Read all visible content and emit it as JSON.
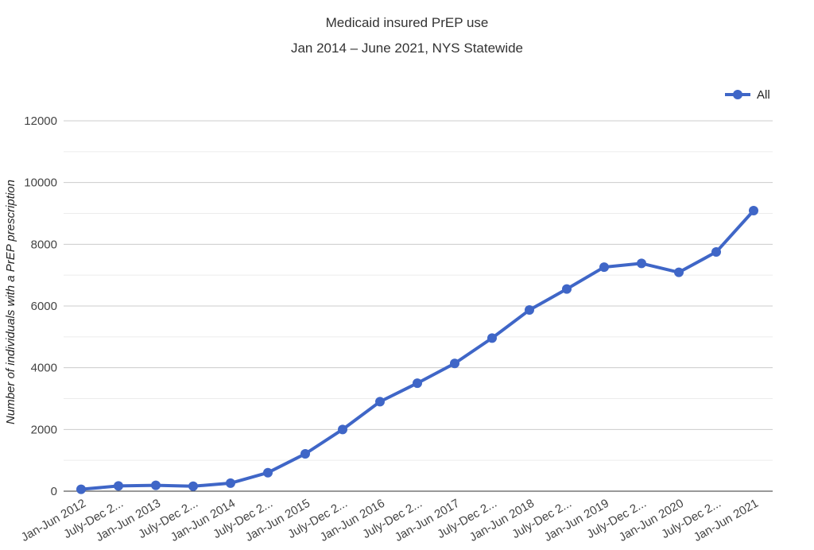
{
  "chart_data": {
    "type": "line",
    "title": "Medicaid insured PrEP use",
    "subtitle": "Jan 2014 – June 2021, NYS Statewide",
    "xlabel": "",
    "ylabel": "Number of individuals with a PrEP prescription",
    "ylim": [
      0,
      12000
    ],
    "yticks": [
      "0",
      "2000",
      "4000",
      "6000",
      "8000",
      "10000",
      "12000"
    ],
    "grid": true,
    "legend_position": "top-right",
    "categories": [
      "Jan-Jun 2012",
      "July-Dec 2...",
      "Jan-Jun 2013",
      "July-Dec 2...",
      "Jan-Jun 2014",
      "July-Dec 2...",
      "Jan-Jun 2015",
      "July-Dec 2...",
      "Jan-Jun 2016",
      "July-Dec 2...",
      "Jan-Jun 2017",
      "July-Dec 2...",
      "Jan-Jun 2018",
      "July-Dec 2...",
      "Jan-Jun 2019",
      "July-Dec 2...",
      "Jan-Jun 2020",
      "July-Dec 2...",
      "Jan-Jun 2021"
    ],
    "series": [
      {
        "name": "All",
        "color": "#3f66c7",
        "values": [
          60,
          170,
          190,
          160,
          260,
          600,
          1210,
          2000,
          2900,
          3500,
          4140,
          4960,
          5870,
          6550,
          7260,
          7380,
          7090,
          7750,
          9090
        ]
      }
    ]
  }
}
